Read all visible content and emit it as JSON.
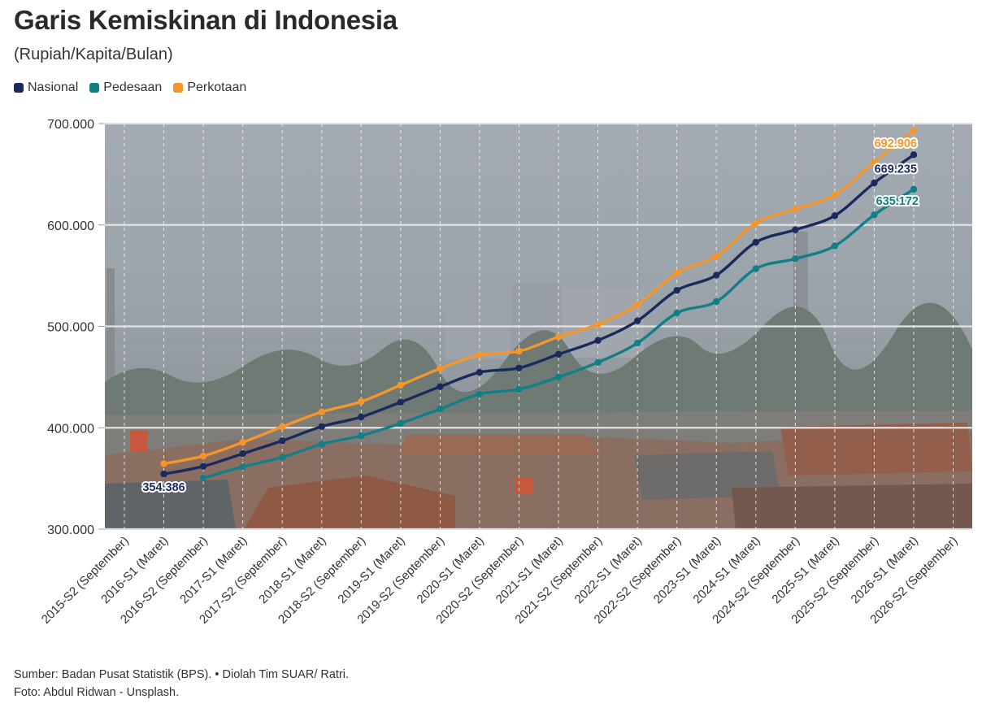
{
  "title": "Garis Kemiskinan di Indonesia",
  "subtitle": "(Rupiah/Kapita/Bulan)",
  "legend": [
    {
      "label": "Nasional",
      "color": "#1b2a5c"
    },
    {
      "label": "Pedesaan",
      "color": "#127f87"
    },
    {
      "label": "Perkotaan",
      "color": "#f5962a"
    }
  ],
  "source": {
    "line1": "Sumber: Badan Pusat Statistik (BPS). • Diolah Tim SUAR/ Ratri.",
    "line2": "Foto: Abdul Ridwan - Unsplash."
  },
  "chart_data": {
    "type": "line",
    "title": "Garis Kemiskinan di Indonesia",
    "subtitle": "(Rupiah/Kapita/Bulan)",
    "ylim": [
      300000,
      700000
    ],
    "yticks": [
      300000,
      400000,
      500000,
      600000,
      700000
    ],
    "ytick_labels": [
      "300.000",
      "400.000",
      "500.000",
      "600.000",
      "700.000"
    ],
    "categories": [
      "2015-S2 (September)",
      "2016-S1 (Maret)",
      "2016-S2 (September)",
      "2017-S1 (Maret)",
      "2017-S2 (September)",
      "2018-S1 (Maret)",
      "2018-S2 (September)",
      "2019-S1 (Maret)",
      "2019-S2 (September)",
      "2020-S1 (Maret)",
      "2020-S2 (September)",
      "2021-S1 (Maret)",
      "2021-S2 (September)",
      "2022-S1 (Maret)",
      "2022-S2 (September)",
      "2023-S1 (Maret)",
      "2024-S1 (Maret)",
      "2024-S2 (September)",
      "2025-S1 (Maret)",
      "2025-S2 (September)",
      "2026-S1 (Maret)",
      "2026-S2 (September)"
    ],
    "grid": true,
    "legend_position": "top-left",
    "background": "photo",
    "series": [
      {
        "name": "Nasional",
        "color": "#1b2a5c",
        "label_color": "#1b2a5c",
        "values": [
          null,
          354386,
          361990,
          374478,
          387160,
          401220,
          410670,
          425250,
          440538,
          454652,
          458947,
          472525,
          486168,
          505469,
          535547,
          550458,
          582932,
          595242,
          609160,
          641443,
          669235,
          null
        ],
        "labels": {
          "1": "354.386",
          "20": "669.235"
        }
      },
      {
        "name": "Pedesaan",
        "color": "#127f87",
        "label_color": "#127f87",
        "values": [
          null,
          null,
          350420,
          361496,
          370910,
          383908,
          392154,
          404398,
          418515,
          433281,
          437902,
          449956,
          464474,
          483498,
          513170,
          524470,
          556874,
          566655,
          579349,
          610000,
          635172,
          null
        ],
        "labels": {
          "20": "635.172"
        }
      },
      {
        "name": "Perkotaan",
        "color": "#f5962a",
        "label_color": "#f5962a",
        "values": [
          null,
          364527,
          372114,
          385621,
          400995,
          415614,
          425770,
          442062,
          458380,
          471822,
          475477,
          489618,
          501915,
          521457,
          552560,
          569299,
          601871,
          615763,
          629561,
          662000,
          692906,
          null
        ],
        "labels": {
          "20": "692.906"
        }
      }
    ]
  }
}
